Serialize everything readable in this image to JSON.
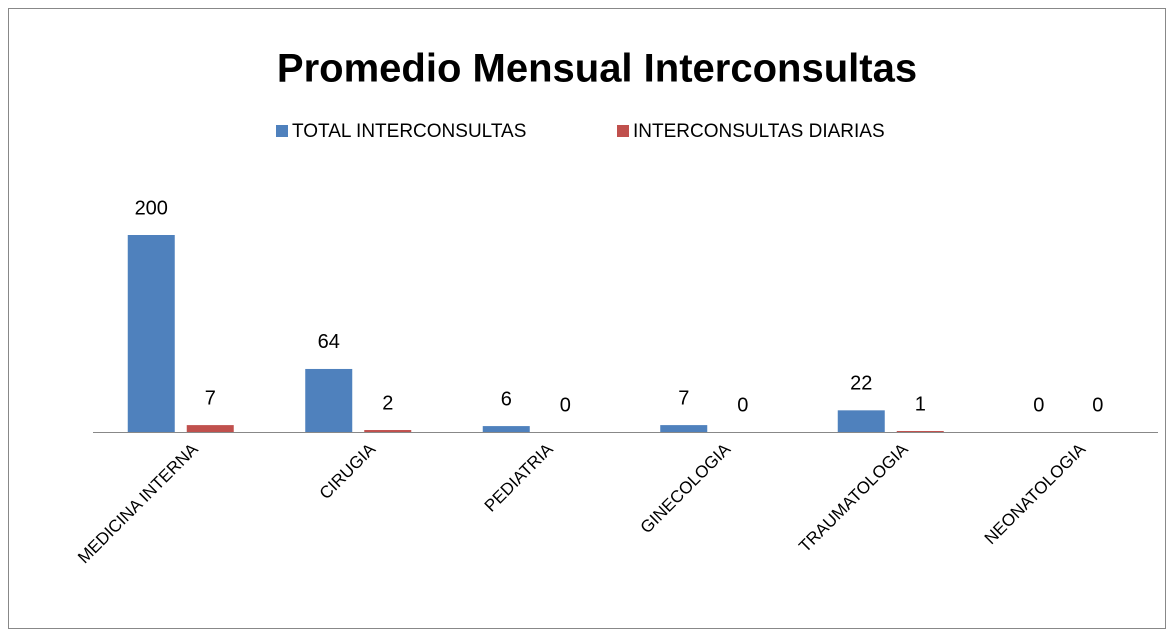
{
  "chart_data": {
    "type": "bar",
    "title": "Promedio Mensual  Interconsultas",
    "categories": [
      "MEDICINA INTERNA",
      "CIRUGIA",
      "PEDIATRIA",
      "GINECOLOGIA",
      "TRAUMATOLOGIA",
      "NEONATOLOGIA"
    ],
    "series": [
      {
        "name": "TOTAL INTERCONSULTAS",
        "color": "#4f81bd",
        "values": [
          200,
          64,
          6,
          7,
          22,
          0
        ]
      },
      {
        "name": "INTERCONSULTAS DIARIAS",
        "color": "#c0504d",
        "values": [
          7,
          2,
          0,
          0,
          1,
          0
        ]
      }
    ],
    "legend": "top"
  }
}
